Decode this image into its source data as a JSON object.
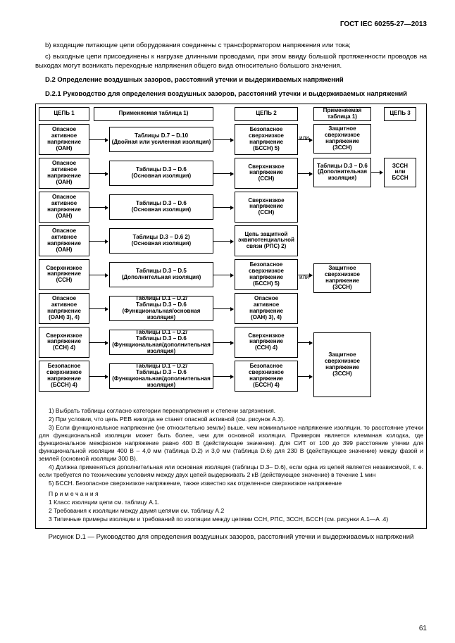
{
  "header": "ГОСТ IEC 60255-27—2013",
  "para_b": "b) входящие питающие цепи оборудования соединены с трансформатором напряжения или тока;",
  "para_c": "c) выходные цепи присоединены к нагрузке длинными проводами, при этом ввиду большой протяженности проводов на выходах могут возникать переходные напряжения общего вида относительно большого значения.",
  "d2_head": "D.2 Определение воздушных зазоров, расстояний утечки и выдерживаемых напряжений",
  "d21_head": "D.2.1 Руководство для определения воздушных зазоров, расстояний утечки и выдерживаемых напряжений",
  "col_headers": {
    "c1": "ЦЕПЬ 1",
    "c2": "Применяемая таблица 1)",
    "c3": "ЦЕПЬ 2",
    "c4": "Применяемая таблица 1)",
    "c5": "ЦЕПЬ 3"
  },
  "left_boxes": [
    {
      "l1": "Опасное",
      "l2": "активное",
      "l3": "напряжение",
      "l4": "(ОАН)"
    },
    {
      "l1": "Опасное",
      "l2": "активное",
      "l3": "напряжение",
      "l4": "(ОАН)"
    },
    {
      "l1": "Опасное",
      "l2": "активное",
      "l3": "напряжение",
      "l4": "(ОАН)"
    },
    {
      "l1": "Опасное",
      "l2": "активное",
      "l3": "напряжение",
      "l4": "(ОАН)"
    },
    {
      "l1": "Сверхнизкое",
      "l2": "напряжение",
      "l3": "(ССН)"
    },
    {
      "l1": "Опасное",
      "l2": "активное",
      "l3": "напряжение",
      "l4": "(ОАН) 3), 4)"
    },
    {
      "l1": "Сверхнизкое",
      "l2": "напряжение",
      "l3": "(ССН) 4)"
    },
    {
      "l1": "Безопасное",
      "l2": "сверхнизкое",
      "l3": "напряжение",
      "l4": "(БССН) 4)"
    }
  ],
  "mid_boxes": [
    {
      "t": "Таблицы D.7 – D.10",
      "s": "(Двойная или усиленная изоляция)"
    },
    {
      "t": "Таблицы D.3 – D.6",
      "s": "(Основная изоляция)"
    },
    {
      "t": "Таблицы D.3 – D.6",
      "s": "(Основная изоляция)"
    },
    {
      "t": "Таблицы D.3 – D.6 2)",
      "s": "(Основная изоляция)"
    },
    {
      "t": "Таблицы D.3 – D.5",
      "s": "(Дополнительная изоляция)"
    },
    {
      "t": "Таблицы D.1 – D.2/",
      "t2": "Таблицы D.3 – D.6",
      "s": "(Функциональная/основная изоляция)"
    },
    {
      "t": "Таблицы D.1 – D.2/",
      "t2": "Таблицы D.3 – D.6",
      "s": "(Функциональная/дополнительная изоляция)"
    },
    {
      "t": "Таблицы D.1 – D.2/",
      "t2": "Таблицы D.3 – D.6",
      "s": "(Функциональная/дополнительная изоляция)"
    }
  ],
  "right_boxes": [
    {
      "l1": "Безопасное",
      "l2": "сверхнизкое",
      "l3": "напряжение",
      "l4": "(БССН) 5)"
    },
    {
      "l1": "Сверхнизкое",
      "l2": "напряжение",
      "l3": "(ССН)"
    },
    {
      "l1": "Сверхнизкое",
      "l2": "напряжение",
      "l3": "(ССН)"
    },
    {
      "l1": "Цепь защитной",
      "l2": "эквипотенциальной",
      "l3": "связи (РПС) 2)"
    },
    {
      "l1": "Безопасное",
      "l2": "сверхнизкое",
      "l3": "напряжение",
      "l4": "(БССН) 5)"
    },
    {
      "l1": "Опасное",
      "l2": "активное",
      "l3": "напряжение",
      "l4": "(ОАН) 3), 4)"
    },
    {
      "l1": "Сверхнизкое",
      "l2": "напряжение",
      "l3": "(ССН) 4)"
    },
    {
      "l1": "Безопасное",
      "l2": "сверхнизкое",
      "l3": "напряжение",
      "l4": "(БССН) 4)"
    }
  ],
  "far_boxes": [
    {
      "l1": "Защитное",
      "l2": "сверхнизкое",
      "l3": "напряжение",
      "l4": "(ЗССН)"
    },
    {
      "l1": "Таблицы D.3 – D.6",
      "l2": "(Дополнительная",
      "l3": "изоляция)"
    },
    {
      "l1": "Защитное",
      "l2": "сверхнизкое",
      "l3": "напряжение",
      "l4": "(ЗССН)"
    },
    {
      "l1": "Защитное",
      "l2": "сверхнизкое",
      "l3": "напряжение",
      "l4": "(ЗССН)"
    }
  ],
  "circuit3": {
    "l1": "ЗССН",
    "l2": "или",
    "l3": "БССН"
  },
  "ili": "или",
  "footnotes": {
    "n1": "1) Выбрать таблицы согласно категории перенапряжения и степени загрязнения.",
    "n2": "2) При условии, что цепь PEB никогда не станет опасной активной (см. рисунок А.3).",
    "n3": "3) Если функциональное напряжение (не относительно земли) выше, чем номинальное напряжение изоляции, то расстояние утечки для функциональной изоляции может быть более, чем для основной изоляции. Примером является клеммная колодка, где функциональное межфазное напряжение равно 400 В (действующее значение). Для СИТ от 100 до 399 расстояние утечки для функциональной изоляции 400 В – 4,0 мм (таблица D.2) и 3,0 мм (таблица D.6) для 230 В (действующее значение) между фазой и землей (основной изоляции 300 В).",
    "n4": "4) Должна применяться дополнительная или основная изоляция (таблицы D.3– D.6), если одна из цепей является независимой, т. е. если требуется по техническим условиям между двух цепей выдерживать 2 кВ (действующее значение) в течение 1 мин",
    "n5": "5) БССН. Безопасное сверхнизкое напряжение, также известно как отделенное сверхнизкое напряжение",
    "prim_head": "П р и м е ч а н и я",
    "p1": "1 Класс изоляции цепи см. таблицу А.1.",
    "p2": "2 Требования к изоляции между двумя цепями см. таблицу А.2",
    "p3": "3 Типичные примеры изоляции и требований по изоляции между цепями ССН, РПС, ЗССН, БССН (см. рисунки А.1—А .4)"
  },
  "caption": "Рисунок D.1 — Руководство для определения воздушных зазоров, расстояний утечки и выдерживаемых напряжений",
  "pagenum": "61"
}
